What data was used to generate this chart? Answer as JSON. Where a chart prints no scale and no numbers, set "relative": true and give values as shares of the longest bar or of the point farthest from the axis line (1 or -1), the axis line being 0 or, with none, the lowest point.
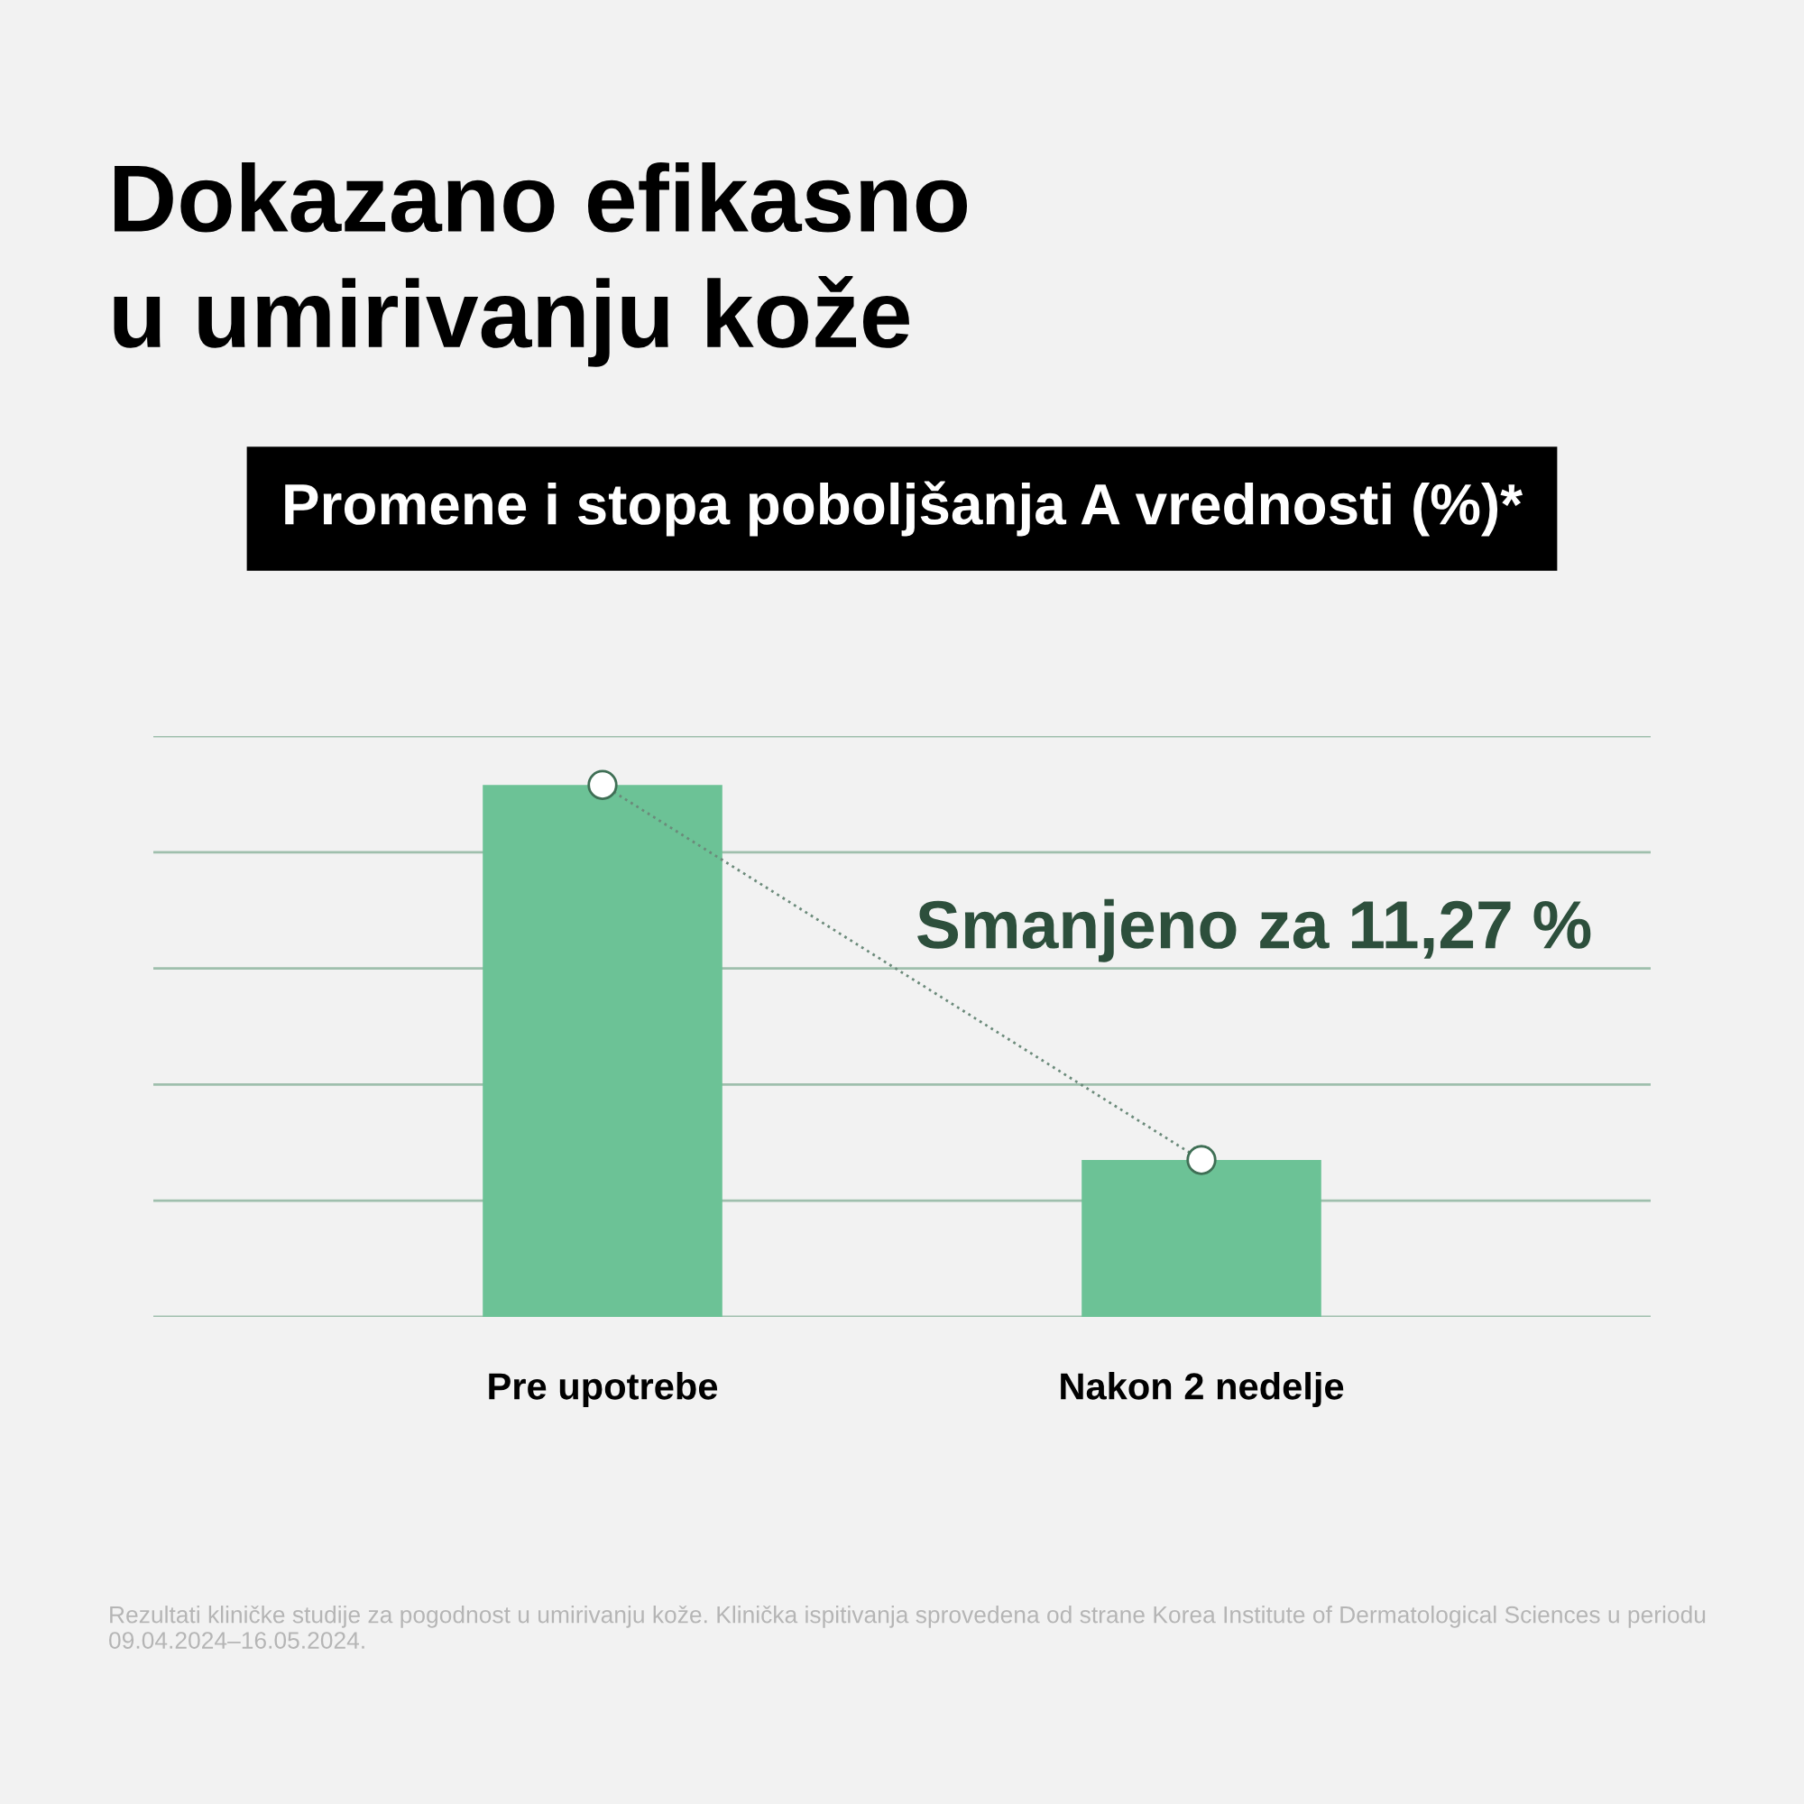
{
  "chart_data": {
    "type": "bar",
    "title": "Dokazano efikasno\nu umirivanju kože",
    "subtitle": "Promene i stopa poboljšanja A vrednosti (%)*",
    "categories": [
      "Pre upotrebe",
      "Nakon 2 nedelje"
    ],
    "relative": true,
    "grid": "y",
    "series": [
      {
        "color": "#6cc296",
        "values": [
          1,
          0.295
        ]
      },
      {
        "type": "line",
        "color": "#6b8a7a",
        "values": [
          1,
          0.295
        ],
        "marker": "circle",
        "line_style": "dotted"
      }
    ],
    "annotations": [
      "Smanjeno za 11,27 %",
      "Rezultati kliničke studije za pogodnost u umirivanju kože. Klinička ispitivanja sprovedena od strane Korea Institute of Dermatological Sciences u periodu 09.04.2024–16.05.2024."
    ]
  }
}
